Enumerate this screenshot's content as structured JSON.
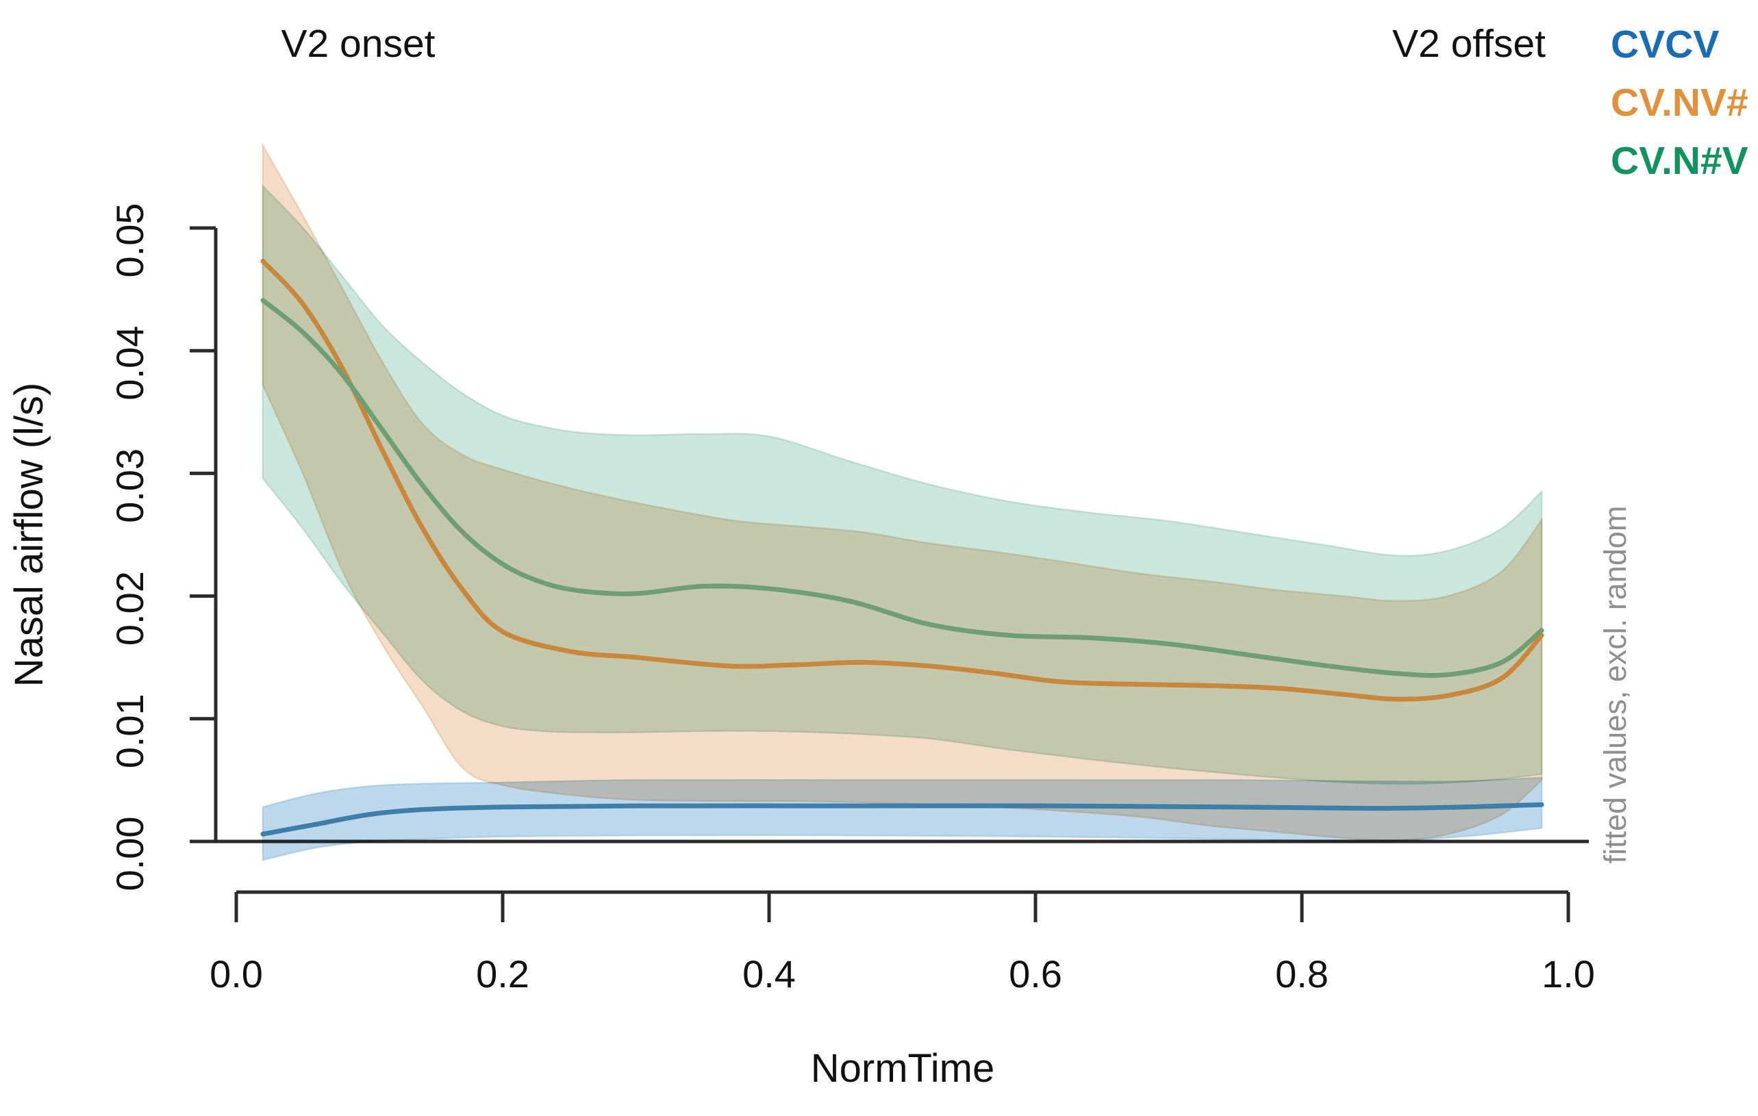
{
  "figure": {
    "v2_onset_label": "V2 onset",
    "v2_offset_label": "V2 offset"
  },
  "legend": [
    {
      "label": "CVCV",
      "color": "#1b6cb3"
    },
    {
      "label": "CV.NV#",
      "color": "#e0913e"
    },
    {
      "label": "CV.N#V",
      "color": "#13915e"
    }
  ],
  "axes": {
    "y_label": "Nasal airflow (l/s)",
    "x_label": "NormTime",
    "right_annotation": "fitted values, excl. random",
    "y_tick_labels": [
      "0.00",
      "0.01",
      "0.02",
      "0.03",
      "0.04",
      "0.05"
    ],
    "x_tick_labels": [
      "0.0",
      "0.2",
      "0.4",
      "0.6",
      "0.8",
      "1.0"
    ]
  },
  "colors": {
    "axis": "#2b2b2b",
    "zero_line": "#2b2b2b"
  },
  "chart_data": {
    "type": "line",
    "title": "",
    "xlabel": "NormTime",
    "ylabel": "Nasal airflow (l/s)",
    "xlim": [
      0.0,
      1.0
    ],
    "ylim": [
      0.0,
      0.05
    ],
    "x_ticks": [
      0.0,
      0.2,
      0.4,
      0.6,
      0.8,
      1.0
    ],
    "y_ticks": [
      0.0,
      0.01,
      0.02,
      0.03,
      0.04,
      0.05
    ],
    "grid": false,
    "legend_position": "top-right",
    "annotations": [
      "V2 onset",
      "V2 offset"
    ],
    "band_meaning": "confidence interval around fitted values, excl. random effects",
    "series": [
      {
        "name": "CVCV",
        "line_color": "#3f7ea8",
        "band_color": "#bdd8ec",
        "band_edge_color": "#9ec4de",
        "x": [
          0.02,
          0.06,
          0.1,
          0.14,
          0.2,
          0.3,
          0.45,
          0.6,
          0.75,
          0.85,
          0.92,
          0.98
        ],
        "y": [
          0.0006,
          0.0014,
          0.0022,
          0.0026,
          0.0028,
          0.0029,
          0.0029,
          0.0029,
          0.0028,
          0.0027,
          0.0028,
          0.003
        ],
        "upper": [
          0.0028,
          0.0039,
          0.0045,
          0.0047,
          0.0048,
          0.005,
          0.005,
          0.005,
          0.005,
          0.0049,
          0.0049,
          0.0052
        ],
        "lower": [
          -0.0015,
          -0.0005,
          0.0,
          0.0002,
          0.0004,
          0.0005,
          0.0005,
          0.0004,
          0.0002,
          0.0,
          0.0004,
          0.0011
        ]
      },
      {
        "name": "CV.NV#",
        "line_color": "#c8873d",
        "band_color": "#f5dcc7",
        "band_edge_color": "#e7c3a3",
        "x": [
          0.02,
          0.05,
          0.08,
          0.11,
          0.14,
          0.17,
          0.2,
          0.25,
          0.3,
          0.37,
          0.42,
          0.47,
          0.52,
          0.57,
          0.62,
          0.68,
          0.73,
          0.78,
          0.83,
          0.87,
          0.91,
          0.95,
          0.98
        ],
        "y": [
          0.0473,
          0.0438,
          0.0385,
          0.0318,
          0.0255,
          0.0205,
          0.0171,
          0.0155,
          0.015,
          0.0143,
          0.0144,
          0.0146,
          0.0143,
          0.0137,
          0.013,
          0.0128,
          0.0127,
          0.0125,
          0.012,
          0.0116,
          0.0119,
          0.0133,
          0.0168
        ],
        "upper": [
          0.0567,
          0.051,
          0.045,
          0.039,
          0.034,
          0.0315,
          0.0303,
          0.0288,
          0.0276,
          0.0262,
          0.0257,
          0.0252,
          0.0243,
          0.0236,
          0.0228,
          0.0218,
          0.0212,
          0.0205,
          0.02,
          0.0196,
          0.02,
          0.022,
          0.0262
        ],
        "lower": [
          0.0372,
          0.03,
          0.022,
          0.016,
          0.011,
          0.006,
          0.0046,
          0.0038,
          0.0034,
          0.0033,
          0.0033,
          0.0032,
          0.003,
          0.0028,
          0.0025,
          0.002,
          0.0013,
          0.0008,
          0.0003,
          0.0001,
          0.0006,
          0.0022,
          0.005
        ]
      },
      {
        "name": "CV.N#V",
        "line_color": "#6f9e72",
        "band_color": "#cbe7dd",
        "band_edge_color": "#abd1c2",
        "x": [
          0.02,
          0.05,
          0.08,
          0.11,
          0.14,
          0.17,
          0.2,
          0.23,
          0.26,
          0.3,
          0.35,
          0.4,
          0.46,
          0.52,
          0.58,
          0.64,
          0.7,
          0.76,
          0.82,
          0.87,
          0.91,
          0.95,
          0.98
        ],
        "y": [
          0.0441,
          0.0415,
          0.038,
          0.0335,
          0.029,
          0.0252,
          0.0226,
          0.0211,
          0.0204,
          0.0202,
          0.0208,
          0.0206,
          0.0196,
          0.0177,
          0.0168,
          0.0166,
          0.0161,
          0.0152,
          0.0143,
          0.0137,
          0.0136,
          0.0146,
          0.0172
        ],
        "upper": [
          0.0534,
          0.05,
          0.046,
          0.042,
          0.039,
          0.0365,
          0.0347,
          0.0338,
          0.0333,
          0.0331,
          0.0332,
          0.033,
          0.031,
          0.0291,
          0.0277,
          0.0268,
          0.0261,
          0.0251,
          0.0241,
          0.0233,
          0.0237,
          0.0255,
          0.0285
        ],
        "lower": [
          0.0296,
          0.0255,
          0.021,
          0.017,
          0.0131,
          0.0106,
          0.0094,
          0.009,
          0.0089,
          0.0089,
          0.009,
          0.009,
          0.0088,
          0.0084,
          0.0075,
          0.0067,
          0.006,
          0.0054,
          0.0049,
          0.0047,
          0.0048,
          0.0051,
          0.0055
        ]
      }
    ]
  }
}
